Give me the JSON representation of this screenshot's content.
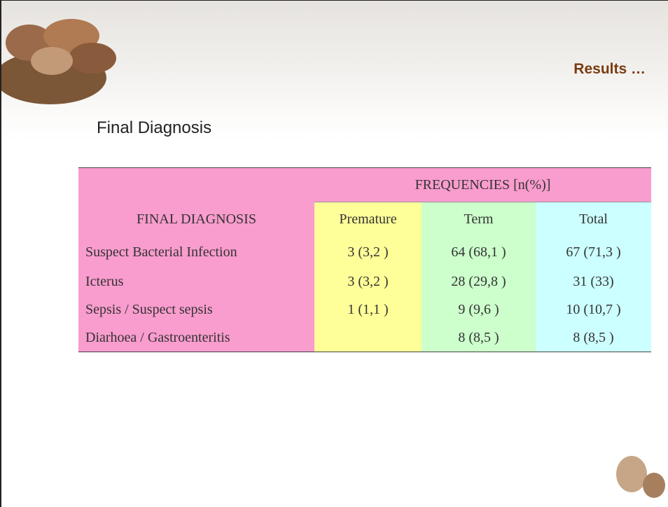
{
  "header": {
    "title": "Results …"
  },
  "slide_title": "Final Diagnosis",
  "table": {
    "group_header": "FREQUENCIES [n(%)]",
    "columns": [
      "FINAL DIAGNOSIS",
      "Premature",
      "Term",
      "Total"
    ],
    "rows": [
      [
        "Suspect Bacterial Infection",
        "3 (3,2 )",
        "64 (68,1 )",
        "67 (71,3 )"
      ],
      [
        "Icterus",
        "3 (3,2 )",
        "28 (29,8 )",
        "31 (33)"
      ],
      [
        "Sepsis / Suspect sepsis",
        "1 (1,1 )",
        "9 (9,6 )",
        "10 (10,7 )"
      ],
      [
        "Diarhoea / Gastroenteritis",
        null,
        "8 (8,5 )",
        "8 (8,5 )"
      ]
    ]
  }
}
